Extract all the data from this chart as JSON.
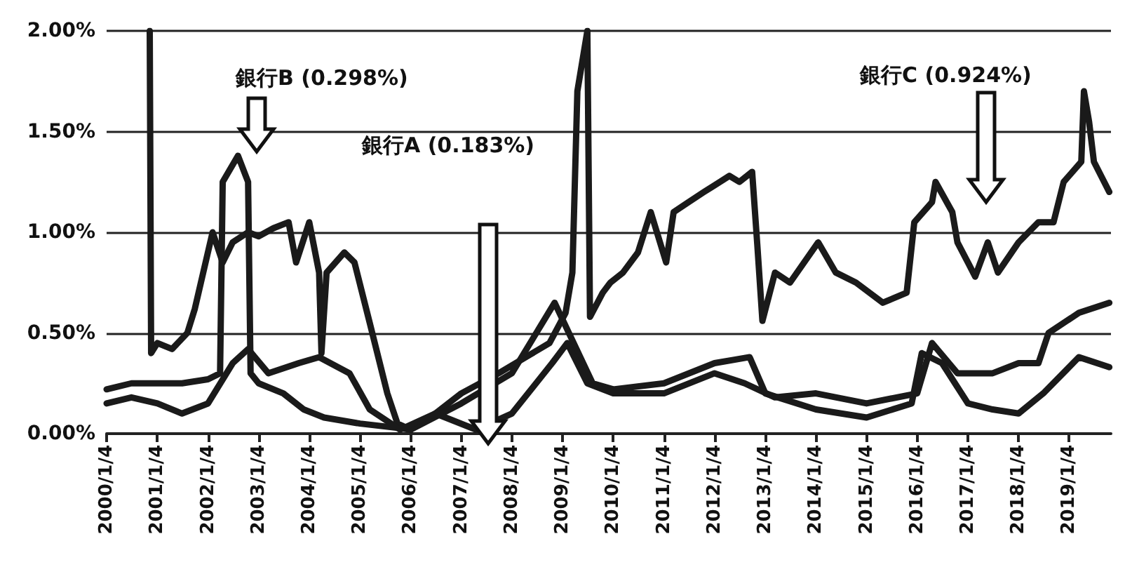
{
  "chart_data": {
    "type": "line",
    "xlim": [
      "2000-01-04",
      "2019-11-01"
    ],
    "xticks": [
      {
        "value": "2000-01-04",
        "label": "2000/1/4"
      },
      {
        "value": "2001-01-04",
        "label": "2001/1/4"
      },
      {
        "value": "2002-01-04",
        "label": "2002/1/4"
      },
      {
        "value": "2003-01-04",
        "label": "2003/1/4"
      },
      {
        "value": "2004-01-04",
        "label": "2004/1/4"
      },
      {
        "value": "2005-01-04",
        "label": "2005/1/4"
      },
      {
        "value": "2006-01-04",
        "label": "2006/1/4"
      },
      {
        "value": "2007-01-04",
        "label": "2007/1/4"
      },
      {
        "value": "2008-01-04",
        "label": "2008/1/4"
      },
      {
        "value": "2009-01-04",
        "label": "2009/1/4"
      },
      {
        "value": "2010-01-04",
        "label": "2010/1/4"
      },
      {
        "value": "2011-01-04",
        "label": "2011/1/4"
      },
      {
        "value": "2012-01-04",
        "label": "2012/1/4"
      },
      {
        "value": "2013-01-04",
        "label": "2013/1/4"
      },
      {
        "value": "2014-01-04",
        "label": "2014/1/4"
      },
      {
        "value": "2015-01-04",
        "label": "2015/1/4"
      },
      {
        "value": "2016-01-04",
        "label": "2016/1/4"
      },
      {
        "value": "2017-01-04",
        "label": "2017/1/4"
      },
      {
        "value": "2018-01-04",
        "label": "2018/1/4"
      },
      {
        "value": "2019-01-04",
        "label": "2019/1/4"
      }
    ],
    "ylim": [
      0,
      2
    ],
    "yticks": [
      {
        "value": 0,
        "label": "0.00%"
      },
      {
        "value": 0.5,
        "label": "0.50%"
      },
      {
        "value": 1,
        "label": "1.00%"
      },
      {
        "value": 1.5,
        "label": "1.50%"
      },
      {
        "value": 2,
        "label": "2.00%"
      }
    ],
    "grid": "y",
    "marker": "none",
    "line_style": "solid",
    "annotations": [
      "銀行B (0.298%)",
      "銀行A (0.183%)",
      "銀行C (0.924%)"
    ],
    "series": [
      {
        "color": "#1a1a1a",
        "x": [
          "2000-11-10",
          "2000-11-20",
          "2001-01-04",
          "2001-04-20",
          "2001-08-08",
          "2001-10-01",
          "2002-02-06",
          "2002-04-20",
          "2002-07-01",
          "2002-10-20",
          "2003-01-04",
          "2003-04-20",
          "2003-08-08",
          "2003-10-01",
          "2004-01-04",
          "2004-03-15",
          "2004-04-01",
          "2004-05-08",
          "2004-09-13",
          "2004-11-25",
          "2005-03-15",
          "2005-07-20",
          "2005-10-01",
          "2006-01-04",
          "2006-07-01",
          "2007-01-04",
          "2007-10-01",
          "2008-10-01",
          "2009-01-25",
          "2009-03-15",
          "2009-04-20",
          "2009-07-01",
          "2009-07-20",
          "2009-10-20",
          "2009-12-14",
          "2010-03-15",
          "2010-07-01",
          "2010-10-01",
          "2011-01-20",
          "2011-03-15",
          "2011-07-01",
          "2011-10-20",
          "2012-04-20",
          "2012-07-01",
          "2012-10-01",
          "2012-11-07",
          "2012-12-14",
          "2013-03-15",
          "2013-07-01",
          "2014-01-20",
          "2014-05-27",
          "2014-10-20",
          "2015-05-01",
          "2015-10-20",
          "2015-12-14",
          "2016-04-20",
          "2016-05-15",
          "2016-09-13",
          "2016-10-20",
          "2017-01-04",
          "2017-02-25",
          "2017-05-27",
          "2017-08-08",
          "2018-01-04",
          "2018-05-27",
          "2018-09-13",
          "2018-11-25",
          "2019-04-01",
          "2019-04-20",
          "2019-05-27",
          "2019-07-01",
          "2019-10-20"
        ],
        "values": [
          2,
          0.4,
          0.45,
          0.42,
          0.5,
          0.62,
          1,
          0.85,
          0.95,
          1.0,
          0.98,
          1.02,
          1.05,
          0.85,
          1.05,
          0.8,
          0.4,
          0.8,
          0.9,
          0.85,
          0.55,
          0.2,
          0.05,
          0.02,
          0.1,
          0.2,
          0.3,
          0.45,
          0.6,
          0.8,
          1.7,
          2,
          0.58,
          0.7,
          0.75,
          0.8,
          0.9,
          1.1,
          0.85,
          1.1,
          1.15,
          1.2,
          1.28,
          1.25,
          1.3,
          0.94,
          0.56,
          0.8,
          0.75,
          0.95,
          0.8,
          0.75,
          0.65,
          0.7,
          1.05,
          1.15,
          1.25,
          1.1,
          0.95,
          0.85,
          0.78,
          0.95,
          0.8,
          0.95,
          1.05,
          1.05,
          1.25,
          1.35,
          1.7,
          1.55,
          1.35,
          1.2
        ]
      },
      {
        "color": "#1a1a1a",
        "x": [
          "2000-01-04",
          "2000-07-01",
          "2001-01-04",
          "2001-07-01",
          "2002-01-04",
          "2002-04-01",
          "2002-04-20",
          "2002-08-08",
          "2002-10-20",
          "2002-11-07",
          "2003-01-04",
          "2003-07-01",
          "2003-11-25",
          "2004-04-20",
          "2005-01-04",
          "2005-09-13",
          "2006-01-04",
          "2007-01-04",
          "2008-01-04",
          "2008-11-07",
          "2009-08-08",
          "2010-01-04",
          "2011-01-04",
          "2012-01-04",
          "2012-09-13",
          "2013-01-04",
          "2014-01-04",
          "2015-01-04",
          "2015-11-25",
          "2016-02-06",
          "2016-07-01",
          "2017-01-04",
          "2017-07-01",
          "2018-01-04",
          "2018-07-01",
          "2019-03-15",
          "2019-10-20"
        ],
        "values": [
          0.22,
          0.25,
          0.25,
          0.25,
          0.27,
          0.3,
          1.25,
          1.38,
          1.25,
          0.3,
          0.25,
          0.2,
          0.12,
          0.08,
          0.05,
          0.03,
          0.02,
          0.15,
          0.3,
          0.65,
          0.25,
          0.22,
          0.25,
          0.35,
          0.38,
          0.2,
          0.12,
          0.08,
          0.15,
          0.4,
          0.35,
          0.15,
          0.12,
          0.1,
          0.2,
          0.38,
          0.33
        ]
      },
      {
        "color": "#1a1a1a",
        "x": [
          "2000-01-04",
          "2000-07-01",
          "2001-01-04",
          "2001-07-01",
          "2002-01-04",
          "2002-07-01",
          "2002-10-20",
          "2003-03-15",
          "2003-10-20",
          "2004-03-15",
          "2004-10-20",
          "2005-03-15",
          "2005-10-20",
          "2006-07-01",
          "2007-04-20",
          "2008-01-04",
          "2008-10-20",
          "2009-02-06",
          "2009-07-01",
          "2010-01-04",
          "2011-01-04",
          "2012-01-04",
          "2012-08-08",
          "2013-03-15",
          "2014-01-04",
          "2015-01-04",
          "2016-01-04",
          "2016-04-20",
          "2016-10-20",
          "2017-07-01",
          "2018-01-04",
          "2018-05-27",
          "2018-08-08",
          "2019-03-15",
          "2019-10-20"
        ],
        "values": [
          0.15,
          0.18,
          0.15,
          0.1,
          0.15,
          0.35,
          0.42,
          0.3,
          0.35,
          0.38,
          0.3,
          0.12,
          0.02,
          0.1,
          0.02,
          0.1,
          0.35,
          0.45,
          0.25,
          0.2,
          0.2,
          0.3,
          0.25,
          0.18,
          0.2,
          0.15,
          0.2,
          0.45,
          0.3,
          0.3,
          0.35,
          0.35,
          0.5,
          0.6,
          0.65
        ]
      }
    ]
  }
}
